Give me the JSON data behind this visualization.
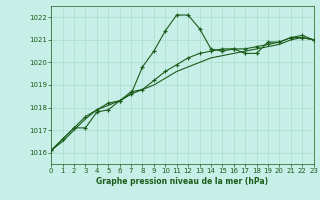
{
  "title": "Graphe pression niveau de la mer (hPa)",
  "bg_color": "#c8eee8",
  "grid_color": "#aaddcc",
  "line_color": "#1a5c1a",
  "xlim": [
    0,
    23
  ],
  "ylim": [
    1015.5,
    1022.5
  ],
  "yticks": [
    1016,
    1017,
    1018,
    1019,
    1020,
    1021,
    1022
  ],
  "xticks": [
    0,
    1,
    2,
    3,
    4,
    5,
    6,
    7,
    8,
    9,
    10,
    11,
    12,
    13,
    14,
    15,
    16,
    17,
    18,
    19,
    20,
    21,
    22,
    23
  ],
  "hours": [
    0,
    1,
    2,
    3,
    4,
    5,
    6,
    7,
    8,
    9,
    10,
    11,
    12,
    13,
    14,
    15,
    16,
    17,
    18,
    19,
    20,
    21,
    22,
    23
  ],
  "line1": [
    1016.1,
    1016.6,
    1017.1,
    1017.1,
    1017.8,
    1017.9,
    1018.3,
    1018.6,
    1019.8,
    1020.5,
    1021.4,
    1022.1,
    1022.1,
    1021.5,
    1020.6,
    1020.5,
    1020.6,
    1020.4,
    1020.4,
    1020.9,
    1020.9,
    1021.1,
    1021.1,
    1021.0
  ],
  "line2": [
    1016.1,
    1016.6,
    1017.1,
    1017.6,
    1017.9,
    1018.2,
    1018.3,
    1018.7,
    1018.8,
    1019.2,
    1019.6,
    1019.9,
    1020.2,
    1020.4,
    1020.5,
    1020.6,
    1020.6,
    1020.6,
    1020.7,
    1020.8,
    1020.9,
    1021.1,
    1021.2,
    1021.0
  ],
  "line3": [
    1016.1,
    1016.5,
    1017.0,
    1017.5,
    1017.9,
    1018.1,
    1018.3,
    1018.6,
    1018.8,
    1019.0,
    1019.3,
    1019.6,
    1019.8,
    1020.0,
    1020.2,
    1020.3,
    1020.4,
    1020.5,
    1020.6,
    1020.7,
    1020.8,
    1021.0,
    1021.1,
    1021.0
  ]
}
